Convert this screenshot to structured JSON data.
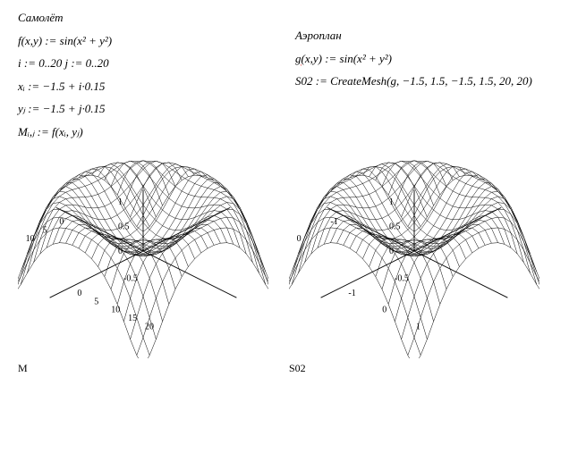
{
  "left": {
    "header": "Самолёт",
    "fn": "f(x,y) := sin(x² + y²)",
    "idx": "i := 0..20    j := 0..20",
    "xdef": "xᵢ := −1.5 + i·0.15",
    "ydef": "yⱼ := −1.5 + j·0.15",
    "Mdef": "Mᵢ,ⱼ := f(xᵢ, yⱼ)"
  },
  "right": {
    "header": "Аэроплан",
    "fn": "g(x,y) := sin(x² + y²)",
    "fn_tag": "g",
    "cmd": "S02 := CreateMesh(g, −1.5, 1.5, −1.5, 1.5, 20, 20)"
  },
  "plot1": {
    "xticks": [
      "0",
      "5",
      "10",
      "15",
      "20"
    ],
    "yticks": [
      "0",
      "5",
      "10",
      "15",
      "20"
    ],
    "zticks": [
      "0",
      "0.5",
      "1"
    ],
    "minuses": true,
    "axis_color": "#000",
    "mesh_color": "#000",
    "caption": "M"
  },
  "plot2": {
    "xticks": [
      "-1",
      "0",
      "1"
    ],
    "yticks": [
      "-1",
      "0",
      "1"
    ],
    "zticks": [
      "0",
      "0.5",
      "1"
    ],
    "minuses": true,
    "axis_color": "#000",
    "mesh_color": "#000",
    "caption": "S02"
  },
  "style": {
    "bg": "#ffffff",
    "fg": "#000000",
    "font_serif": "Times New Roman",
    "font_size": 13
  }
}
